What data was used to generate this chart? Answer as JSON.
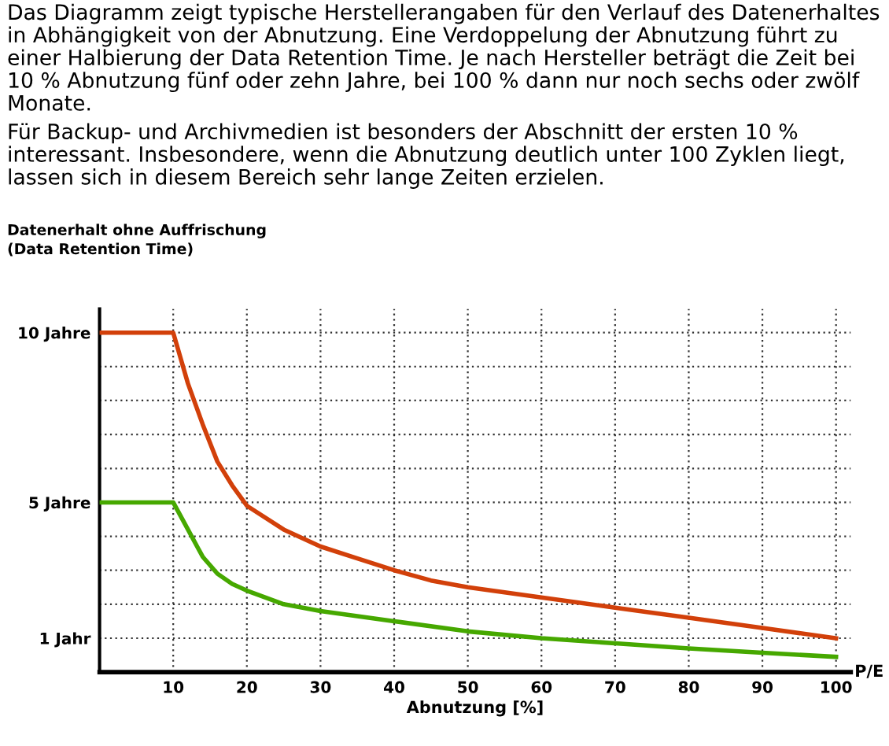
{
  "chart_data": {
    "type": "line",
    "title": "Das Diagramm zeigt typische Herstellerangaben für den Verlauf des Datenerhaltes in Abhängigkeit von der Abnutzung. Eine Verdoppelung der Abnutzung führt zu einer Halbierung der Data Retention Time. Je nach Hersteller beträgt die Zeit bei 10 % Abnutzung fünf oder zehn Jahre, bei 100 % dann nur noch sechs oder zwölf Monate.",
    "subtitle": "Für Backup- und Archivmedien ist besonders der Abschnitt der ersten 10 % interessant. Insbesondere, wenn die Abnutzung deutlich unter 100 Zyklen liegt, lassen sich in diesem Bereich sehr lange Zeiten erzielen.",
    "ylabel": "Datenerhalt ohne Auffrischung\n(Data Retention Time)",
    "xlabel": "Abnutzung [%]",
    "annotations": [
      "P/E"
    ],
    "series": [
      {
        "color": "#d2400a",
        "x": [
          0,
          10,
          12,
          14,
          16,
          18,
          20,
          25,
          30,
          35,
          40,
          45,
          50,
          60,
          70,
          80,
          90,
          100
        ],
        "values": [
          10,
          10,
          8.5,
          7.3,
          6.2,
          5.5,
          4.9,
          4.2,
          3.7,
          3.35,
          3.0,
          2.7,
          2.5,
          2.2,
          1.9,
          1.6,
          1.3,
          1.0
        ]
      },
      {
        "color": "#46a800",
        "x": [
          0,
          10,
          12,
          14,
          16,
          18,
          20,
          25,
          30,
          40,
          50,
          60,
          70,
          80,
          90,
          100
        ],
        "values": [
          5,
          5,
          4.2,
          3.4,
          2.9,
          2.6,
          2.4,
          2.0,
          1.8,
          1.5,
          1.2,
          1.0,
          0.85,
          0.7,
          0.57,
          0.45
        ]
      }
    ],
    "xlim": [
      0,
      102
    ],
    "ylim": [
      0,
      10.7
    ],
    "xticks": [
      10,
      20,
      30,
      40,
      50,
      60,
      70,
      80,
      90,
      100
    ],
    "yticks": [
      {
        "value": 1,
        "label": "1 Jahr"
      },
      {
        "value": 2,
        "label": null
      },
      {
        "value": 3,
        "label": null
      },
      {
        "value": 4,
        "label": null
      },
      {
        "value": 5,
        "label": "5 Jahre"
      },
      {
        "value": 6,
        "label": null
      },
      {
        "value": 7,
        "label": null
      },
      {
        "value": 8,
        "label": null
      },
      {
        "value": 9,
        "label": null
      },
      {
        "value": 10,
        "label": "10 Jahre"
      }
    ],
    "grid": true,
    "legend": false,
    "marker": "none",
    "line_style": "solid"
  }
}
